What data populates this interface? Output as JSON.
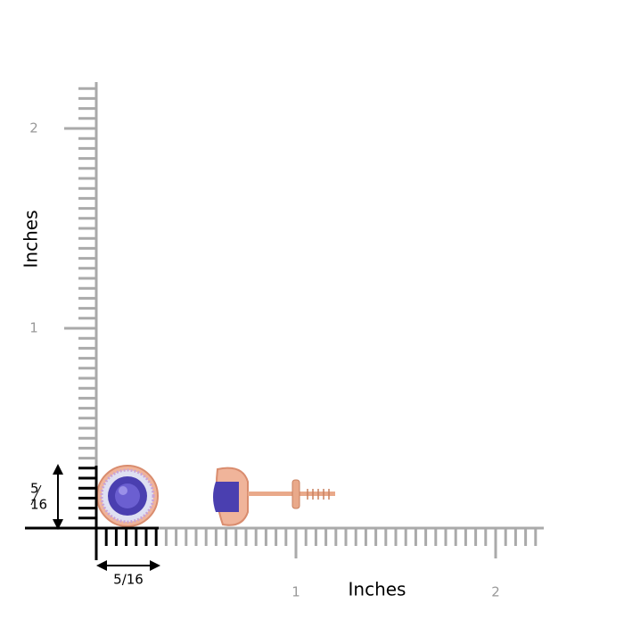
{
  "rulers": {
    "vertical": {
      "label": "Inches",
      "ticks": [
        1,
        2
      ]
    },
    "horizontal": {
      "label": "Inches",
      "ticks": [
        1,
        2
      ]
    }
  },
  "dimensions": {
    "height": {
      "numerator": "5",
      "denominator": "16"
    },
    "width": "5/16"
  }
}
